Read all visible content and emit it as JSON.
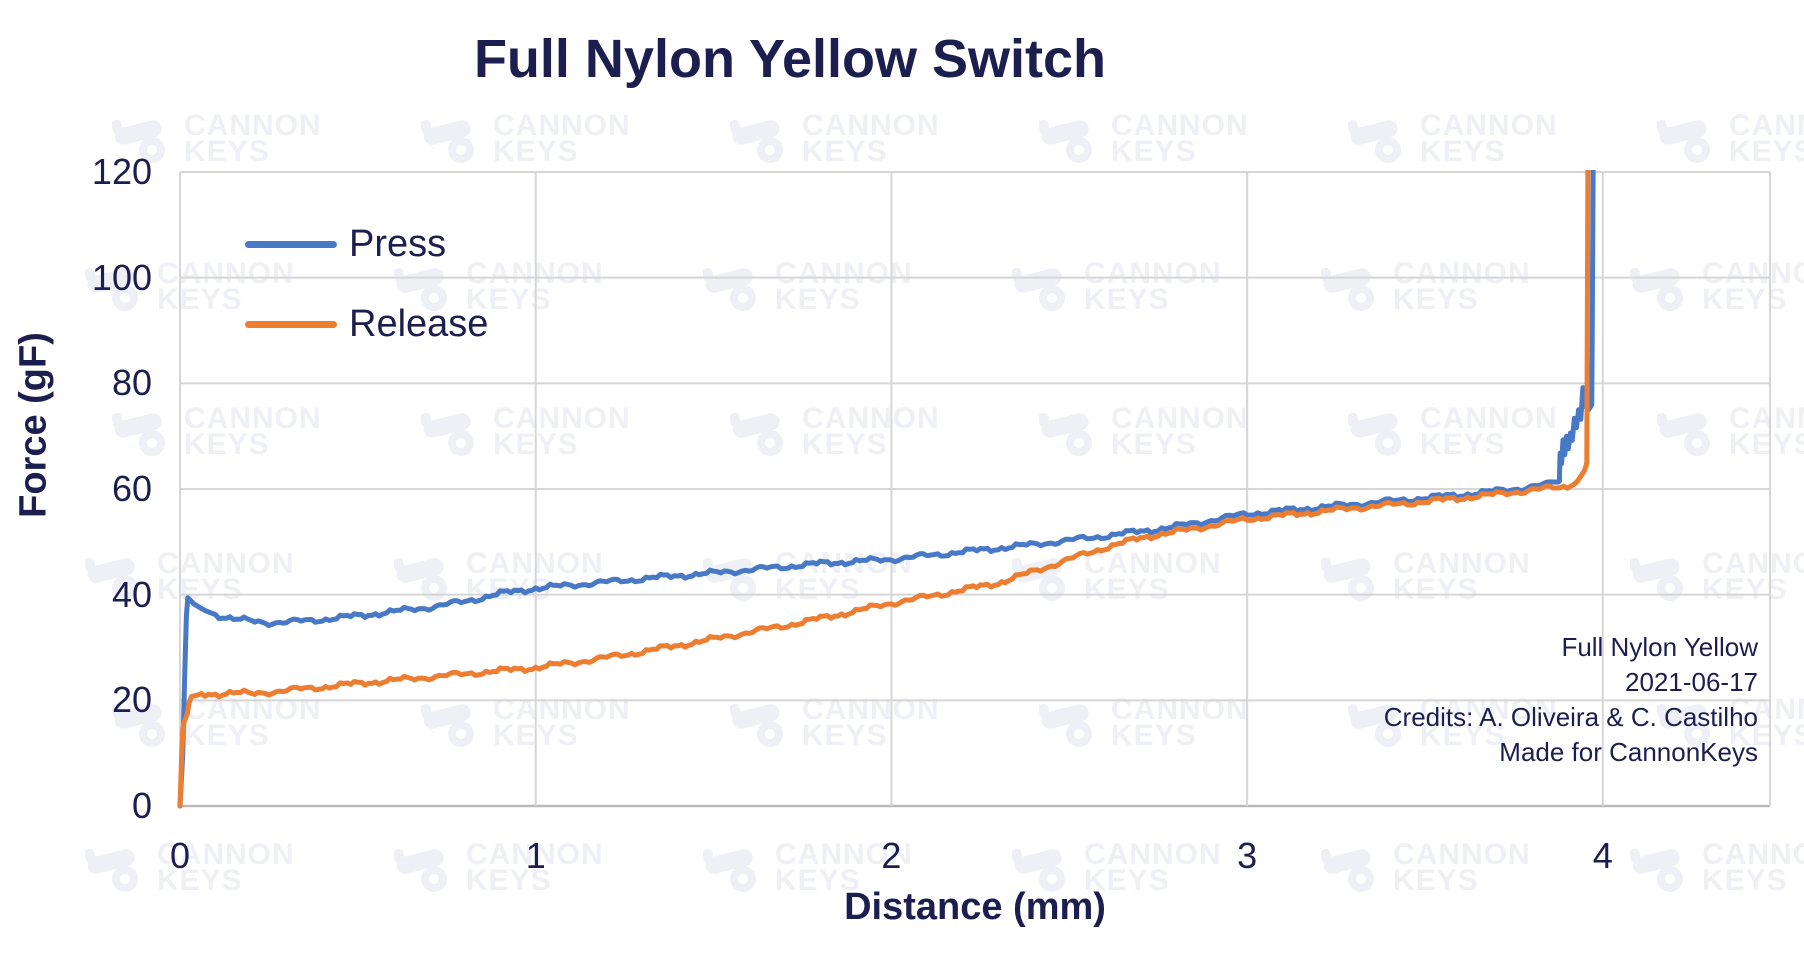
{
  "title": "Full Nylon Yellow Switch",
  "colors": {
    "text_navy": "#1b1e4e",
    "gridline": "#d6d6d6",
    "axis_line": "#b9b9b9",
    "press_blue": "#4879C7",
    "release_orange": "#ED7D31",
    "watermark": "#eef0f5"
  },
  "legend": {
    "items": [
      {
        "label": "Press",
        "color": "#4879C7"
      },
      {
        "label": "Release",
        "color": "#ED7D31"
      }
    ]
  },
  "annotation": {
    "lines": [
      "Full Nylon Yellow",
      "2021-06-17",
      "Credits: A. Oliveira & C. Castilho",
      "Made for CannonKeys"
    ]
  },
  "watermark": {
    "line1": "CANNON",
    "line2": "KEYS"
  },
  "chart_data": {
    "type": "line",
    "title": "Full Nylon Yellow Switch",
    "xlabel": "Distance (mm)",
    "ylabel": "Force (gF)",
    "xlim": [
      0,
      4.47
    ],
    "ylim": [
      0,
      120
    ],
    "x_ticks": [
      0,
      1,
      2,
      3,
      4
    ],
    "y_ticks": [
      0,
      20,
      40,
      60,
      80,
      100,
      120
    ],
    "grid": true,
    "legend_position": "top-left-inside",
    "series": [
      {
        "name": "Press",
        "color": "#4879C7",
        "points": [
          [
            0,
            0
          ],
          [
            0.008,
            10
          ],
          [
            0.013,
            24
          ],
          [
            0.018,
            36
          ],
          [
            0.022,
            39.4
          ],
          [
            0.04,
            38.2
          ],
          [
            0.07,
            37
          ],
          [
            0.1,
            36.2
          ],
          [
            0.15,
            35.4
          ],
          [
            0.2,
            35
          ],
          [
            0.25,
            34.7
          ],
          [
            0.3,
            34.8
          ],
          [
            0.4,
            35.3
          ],
          [
            0.5,
            36
          ],
          [
            0.6,
            36.8
          ],
          [
            0.7,
            37.6
          ],
          [
            0.8,
            38.7
          ],
          [
            0.9,
            40.2
          ],
          [
            1,
            41.2
          ],
          [
            1.1,
            41.8
          ],
          [
            1.2,
            42.4
          ],
          [
            1.3,
            43
          ],
          [
            1.4,
            43.6
          ],
          [
            1.5,
            44.1
          ],
          [
            1.6,
            44.7
          ],
          [
            1.7,
            45.3
          ],
          [
            1.8,
            45.9
          ],
          [
            1.9,
            46.3
          ],
          [
            2,
            46.7
          ],
          [
            2.1,
            47.4
          ],
          [
            2.2,
            48.1
          ],
          [
            2.3,
            48.8
          ],
          [
            2.4,
            49.5
          ],
          [
            2.5,
            50.3
          ],
          [
            2.6,
            51.1
          ],
          [
            2.7,
            52
          ],
          [
            2.75,
            52.4
          ],
          [
            2.8,
            52.9
          ],
          [
            2.9,
            54.1
          ],
          [
            3,
            55.3
          ],
          [
            3.1,
            55.9
          ],
          [
            3.2,
            56.5
          ],
          [
            3.3,
            57.1
          ],
          [
            3.4,
            57.7
          ],
          [
            3.5,
            58.3
          ],
          [
            3.6,
            58.9
          ],
          [
            3.7,
            59.6
          ],
          [
            3.8,
            60.4
          ],
          [
            3.85,
            60.9
          ],
          [
            3.875,
            61.3
          ],
          [
            3.878,
            61.5
          ],
          [
            3.88,
            66.8
          ],
          [
            3.884,
            64.8
          ],
          [
            3.888,
            69.3
          ],
          [
            3.893,
            66.5
          ],
          [
            3.898,
            70
          ],
          [
            3.903,
            67.6
          ],
          [
            3.909,
            70.6
          ],
          [
            3.914,
            69.2
          ],
          [
            3.92,
            73.4
          ],
          [
            3.926,
            71.6
          ],
          [
            3.932,
            75
          ],
          [
            3.938,
            73.2
          ],
          [
            3.944,
            79.2
          ],
          [
            3.949,
            75.6
          ],
          [
            3.954,
            77.6
          ],
          [
            3.959,
            74.9
          ],
          [
            3.964,
            75.4
          ],
          [
            3.969,
            76
          ],
          [
            3.973,
            122
          ]
        ]
      },
      {
        "name": "Release",
        "color": "#ED7D31",
        "points": [
          [
            0,
            0
          ],
          [
            0.004,
            8
          ],
          [
            0.008,
            14.5
          ],
          [
            0.012,
            16
          ],
          [
            0.017,
            16.8
          ],
          [
            0.021,
            17.6
          ],
          [
            0.026,
            19.6
          ],
          [
            0.032,
            20.7
          ],
          [
            0.05,
            21
          ],
          [
            0.1,
            21.2
          ],
          [
            0.15,
            21.5
          ],
          [
            0.2,
            21.2
          ],
          [
            0.3,
            21.9
          ],
          [
            0.4,
            22.5
          ],
          [
            0.5,
            23.2
          ],
          [
            0.6,
            23.8
          ],
          [
            0.7,
            24.4
          ],
          [
            0.8,
            25
          ],
          [
            0.9,
            25.6
          ],
          [
            1,
            26.2
          ],
          [
            1.1,
            27.1
          ],
          [
            1.2,
            28.1
          ],
          [
            1.3,
            29.2
          ],
          [
            1.4,
            30.4
          ],
          [
            1.5,
            31.6
          ],
          [
            1.6,
            32.9
          ],
          [
            1.7,
            34.1
          ],
          [
            1.8,
            35.5
          ],
          [
            1.9,
            36.9
          ],
          [
            2,
            38.4
          ],
          [
            2.1,
            39.6
          ],
          [
            2.2,
            40.9
          ],
          [
            2.3,
            42.2
          ],
          [
            2.4,
            44.4
          ],
          [
            2.5,
            46.7
          ],
          [
            2.6,
            48.9
          ],
          [
            2.7,
            50.7
          ],
          [
            2.75,
            51.4
          ],
          [
            2.8,
            51.9
          ],
          [
            2.9,
            53.1
          ],
          [
            3,
            54.3
          ],
          [
            3.1,
            55
          ],
          [
            3.2,
            55.7
          ],
          [
            3.3,
            56.4
          ],
          [
            3.4,
            57
          ],
          [
            3.5,
            57.6
          ],
          [
            3.6,
            58.3
          ],
          [
            3.7,
            59
          ],
          [
            3.8,
            59.8
          ],
          [
            3.9,
            60.5
          ],
          [
            3.92,
            60.9
          ],
          [
            3.93,
            61.6
          ],
          [
            3.94,
            62.6
          ],
          [
            3.949,
            63.6
          ],
          [
            3.955,
            64.9
          ],
          [
            3.958,
            122
          ]
        ]
      }
    ]
  }
}
